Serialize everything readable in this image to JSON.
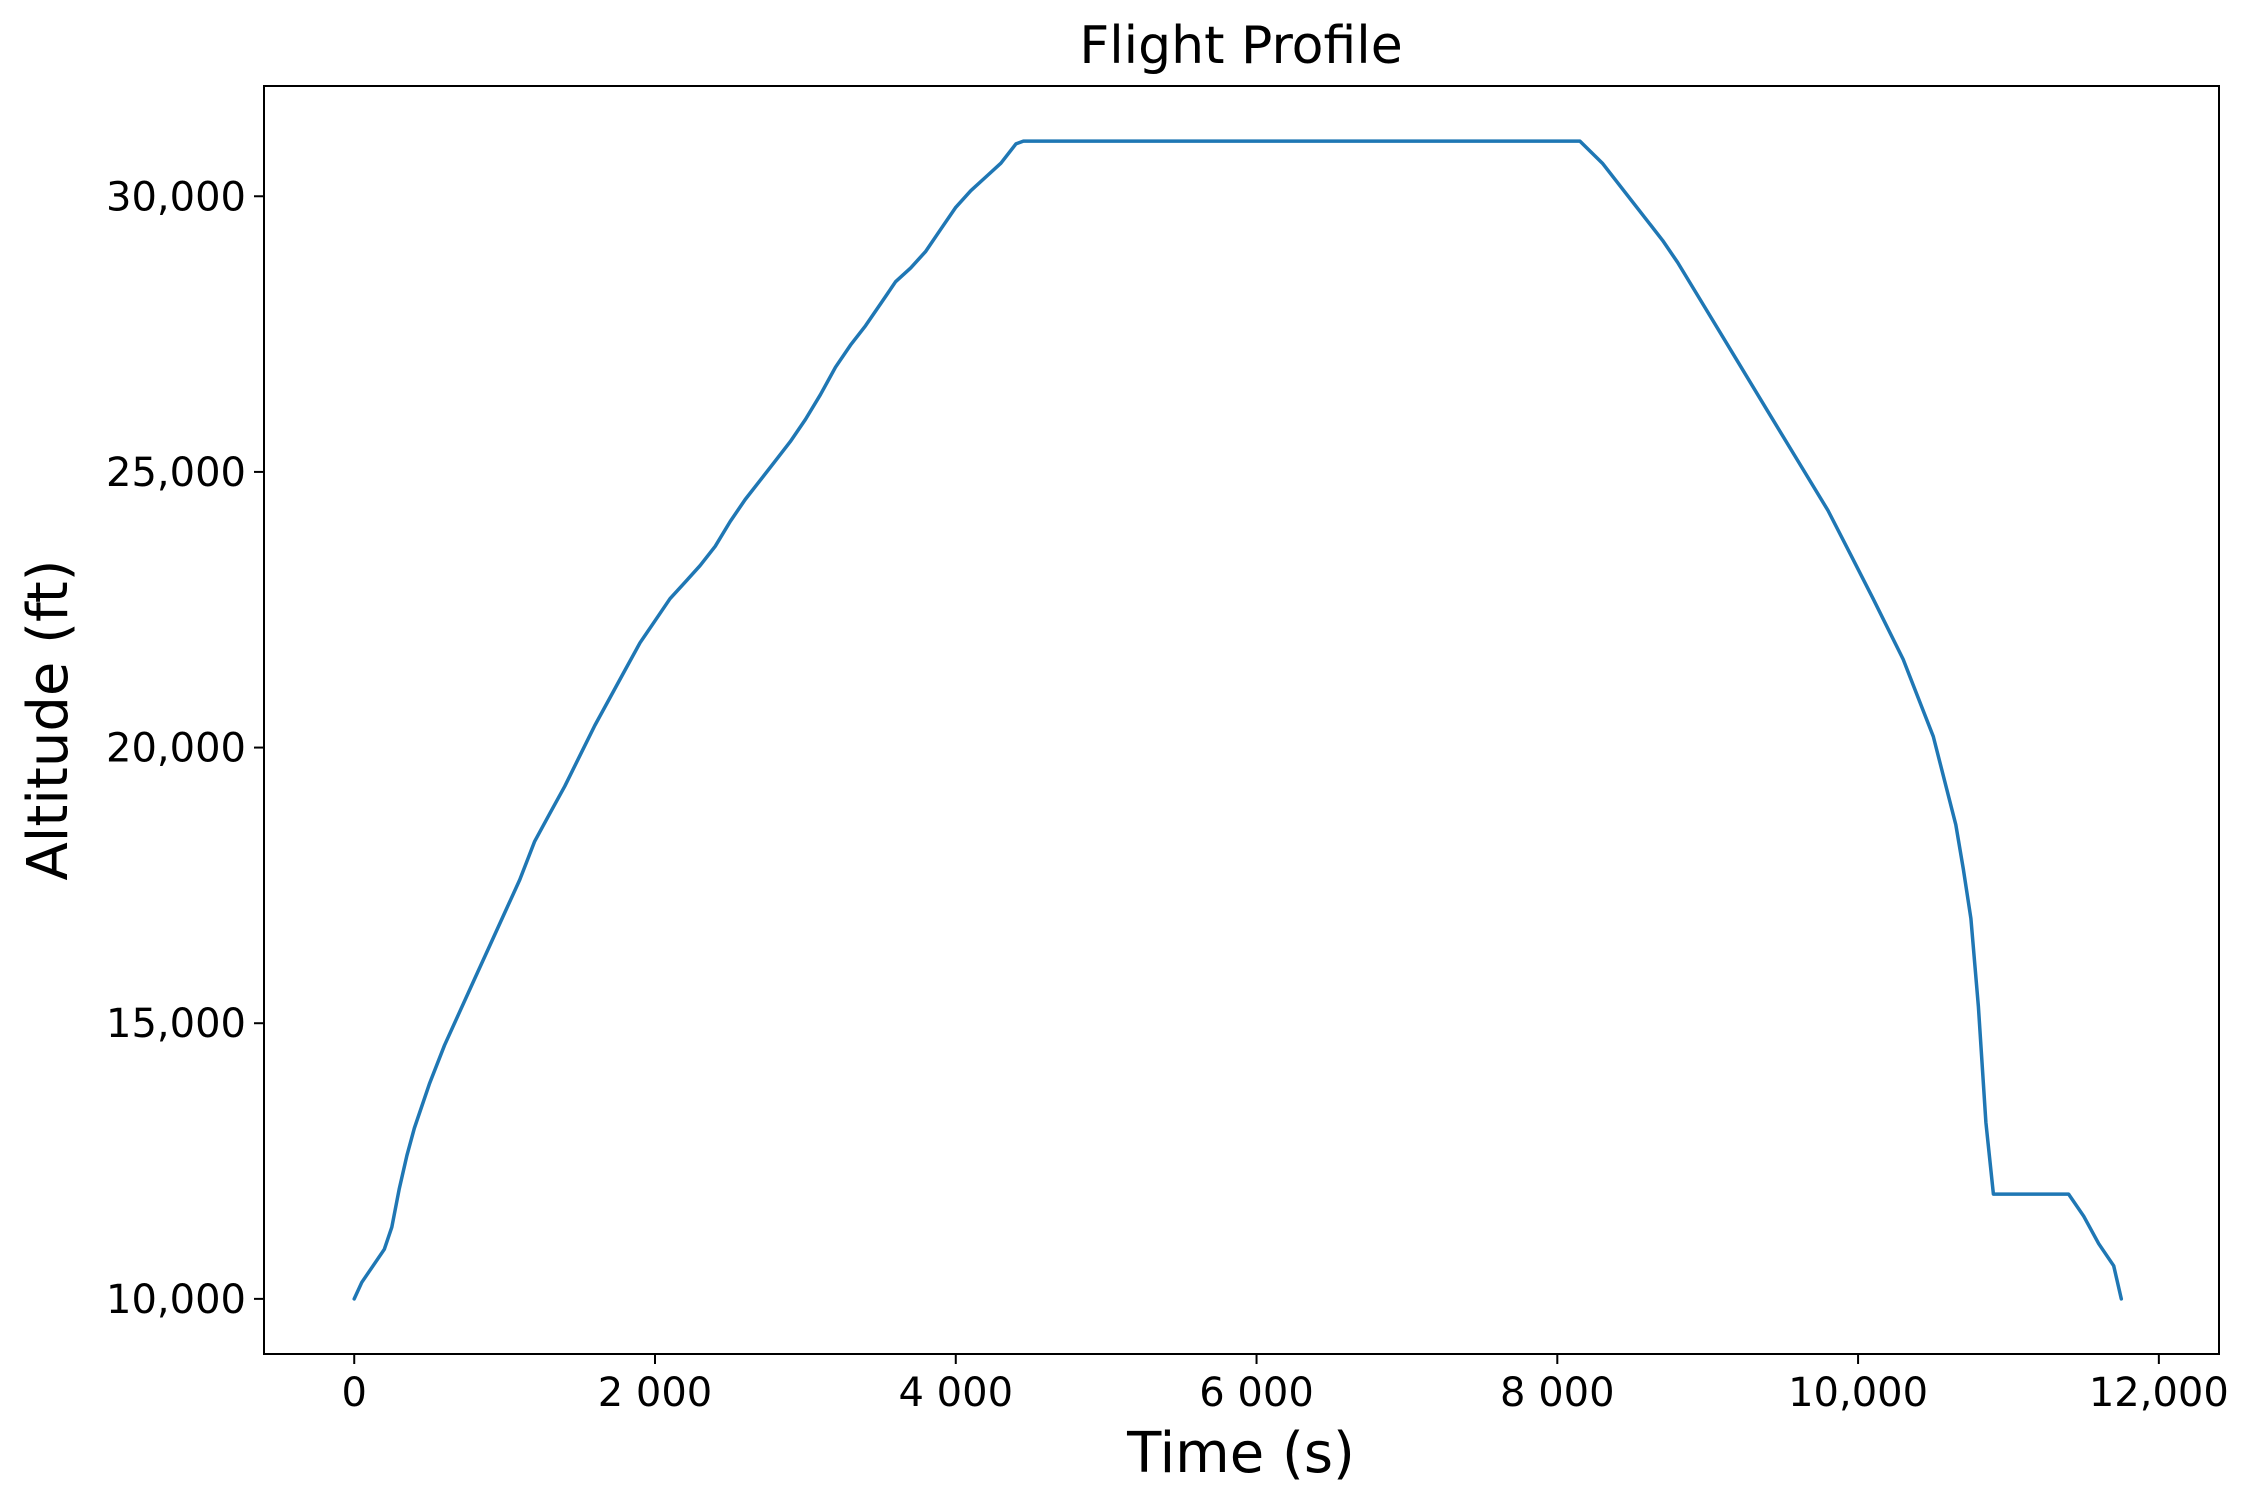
{
  "chart_data": {
    "type": "line",
    "title": "Flight Profile",
    "xlabel": "Time (s)",
    "ylabel": "Altitude (ft)",
    "xlim": [
      -600,
      12400
    ],
    "ylim": [
      9000,
      32000
    ],
    "grid": false,
    "legend": "none",
    "x_ticks": [
      {
        "value": 0,
        "label": "0"
      },
      {
        "value": 2000,
        "label": "2 000"
      },
      {
        "value": 4000,
        "label": "4 000"
      },
      {
        "value": 6000,
        "label": "6 000"
      },
      {
        "value": 8000,
        "label": "8 000"
      },
      {
        "value": 10000,
        "label": "10,000"
      },
      {
        "value": 12000,
        "label": "12,000"
      }
    ],
    "y_ticks": [
      {
        "value": 10000,
        "label": "10,000"
      },
      {
        "value": 15000,
        "label": "15,000"
      },
      {
        "value": 20000,
        "label": "20,000"
      },
      {
        "value": 25000,
        "label": "25,000"
      },
      {
        "value": 30000,
        "label": "30,000"
      }
    ],
    "series": [
      {
        "color": "#1f77b4",
        "x": [
          0,
          50,
          100,
          200,
          250,
          300,
          350,
          400,
          500,
          600,
          700,
          800,
          900,
          1000,
          1100,
          1200,
          1300,
          1400,
          1500,
          1600,
          1700,
          1800,
          1900,
          2000,
          2100,
          2200,
          2300,
          2400,
          2500,
          2600,
          2700,
          2800,
          2900,
          3000,
          3100,
          3200,
          3300,
          3400,
          3500,
          3600,
          3700,
          3800,
          3900,
          4000,
          4100,
          4200,
          4300,
          4400,
          4450,
          5000,
          6000,
          7000,
          8000,
          8150,
          8300,
          8500,
          8700,
          8800,
          9000,
          9200,
          9400,
          9600,
          9800,
          9950,
          10100,
          10300,
          10500,
          10650,
          10700,
          10750,
          10800,
          10850,
          10900,
          11000,
          11100,
          11200,
          11300,
          11400,
          11500,
          11600,
          11700,
          11750
        ],
        "y": [
          10000,
          10300,
          10500,
          10900,
          11300,
          12000,
          12600,
          13100,
          13900,
          14600,
          15200,
          15800,
          16400,
          17000,
          17600,
          18300,
          18800,
          19300,
          19850,
          20400,
          20900,
          21400,
          21900,
          22300,
          22700,
          23000,
          23300,
          23650,
          24100,
          24500,
          24850,
          25200,
          25550,
          25950,
          26400,
          26900,
          27300,
          27650,
          28050,
          28450,
          28700,
          29000,
          29400,
          29800,
          30100,
          30350,
          30600,
          30950,
          31000,
          31000,
          31000,
          31000,
          31000,
          31000,
          30600,
          29900,
          29200,
          28800,
          27900,
          27000,
          26100,
          25200,
          24300,
          23500,
          22700,
          21600,
          20200,
          18600,
          17800,
          16900,
          15300,
          13200,
          11900,
          11900,
          11900,
          11900,
          11900,
          11900,
          11500,
          11000,
          10600,
          10000
        ]
      }
    ]
  }
}
